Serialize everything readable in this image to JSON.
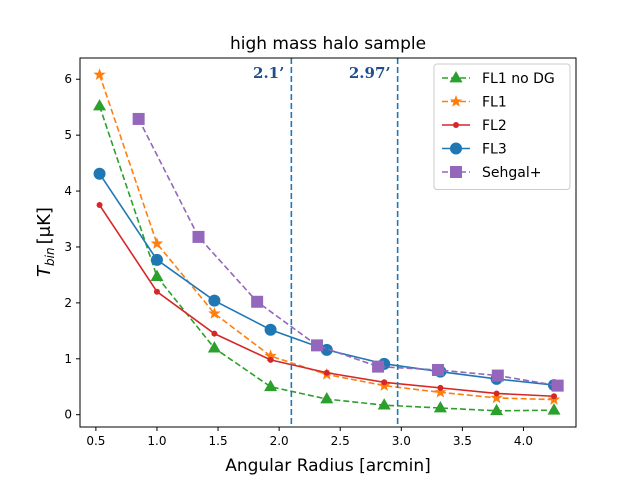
{
  "chart_data": {
    "type": "line",
    "title": "high mass halo sample",
    "xlabel": "Angular Radius [arcmin]",
    "ylabel_main": "T",
    "ylabel_sub": "bin",
    "ylabel_unit": "[μK]",
    "xlim": [
      0.37,
      4.43
    ],
    "ylim": [
      -0.22,
      6.38
    ],
    "xticks": [
      0.5,
      1.0,
      1.5,
      2.0,
      2.5,
      3.0,
      3.5,
      4.0
    ],
    "xtick_labels": [
      "0.5",
      "1.0",
      "1.5",
      "2.0",
      "2.5",
      "3.0",
      "3.5",
      "4.0"
    ],
    "yticks": [
      0,
      1,
      2,
      3,
      4,
      5,
      6
    ],
    "ytick_labels": [
      "0",
      "1",
      "2",
      "3",
      "4",
      "5",
      "6"
    ],
    "grid": false,
    "legend_position": "top-right",
    "vlines": [
      {
        "x": 2.1,
        "label": "2.1’",
        "color": "#1f77b4"
      },
      {
        "x": 2.97,
        "label": "2.97’",
        "color": "#1f77b4"
      }
    ],
    "series": [
      {
        "name": "FL1 no DG",
        "color": "#2ca02c",
        "linestyle": "dashed",
        "marker": "triangle",
        "x": [
          0.53,
          1.0,
          1.47,
          1.93,
          2.39,
          2.86,
          3.32,
          3.78,
          4.25
        ],
        "y": [
          5.52,
          2.47,
          1.19,
          0.5,
          0.28,
          0.17,
          0.12,
          0.07,
          0.08
        ]
      },
      {
        "name": "FL1",
        "color": "#ff7f0e",
        "linestyle": "dashed",
        "marker": "star",
        "x": [
          0.53,
          1.0,
          1.47,
          1.93,
          2.39,
          2.86,
          3.32,
          3.78,
          4.25
        ],
        "y": [
          6.08,
          3.06,
          1.81,
          1.05,
          0.72,
          0.52,
          0.4,
          0.3,
          0.27
        ]
      },
      {
        "name": "FL2",
        "color": "#d62728",
        "linestyle": "solid",
        "marker": "dot",
        "x": [
          0.53,
          1.0,
          1.47,
          1.93,
          2.39,
          2.86,
          3.32,
          3.78,
          4.25
        ],
        "y": [
          3.75,
          2.2,
          1.45,
          0.98,
          0.75,
          0.58,
          0.48,
          0.38,
          0.33
        ]
      },
      {
        "name": "FL3",
        "color": "#1f77b4",
        "linestyle": "solid",
        "marker": "circle",
        "x": [
          0.53,
          1.0,
          1.47,
          1.93,
          2.39,
          2.86,
          3.32,
          3.78,
          4.25
        ],
        "y": [
          4.31,
          2.77,
          2.04,
          1.52,
          1.16,
          0.91,
          0.77,
          0.64,
          0.53
        ]
      },
      {
        "name": "Sehgal+",
        "color": "#9467bd",
        "linestyle": "dashed",
        "marker": "square",
        "x": [
          0.85,
          1.34,
          1.82,
          2.31,
          2.81,
          3.3,
          3.79,
          4.28
        ],
        "y": [
          5.29,
          3.18,
          2.02,
          1.24,
          0.86,
          0.8,
          0.7,
          0.52
        ]
      }
    ]
  }
}
